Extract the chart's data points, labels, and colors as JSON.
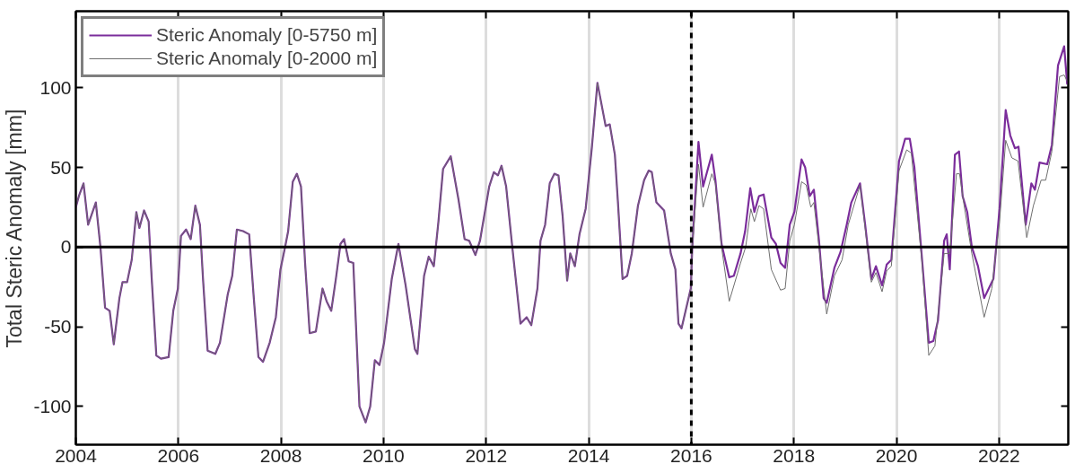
{
  "chart_data": {
    "type": "line",
    "ylabel": "Total Steric Anomaly [mm]",
    "xlim": [
      2004,
      2023.35
    ],
    "ylim": [
      -124,
      148
    ],
    "xticks": [
      2004,
      2006,
      2008,
      2010,
      2012,
      2014,
      2016,
      2018,
      2020,
      2022
    ],
    "yticks": [
      -100,
      -50,
      0,
      50,
      100
    ],
    "grid": "x",
    "legend": "top left",
    "marker": "none",
    "line_style": "solid",
    "ref_lines": [
      {
        "axis": "y",
        "value": 0,
        "color": "#000000",
        "line_style": "solid"
      },
      {
        "axis": "x",
        "value": 2016,
        "color": "#000000",
        "line_style": "dashed"
      }
    ],
    "series": [
      {
        "name": "Steric Anomaly [0-5750 m]",
        "color": "#7b2d9b",
        "x": [
          2004.0,
          2004.06,
          2004.15,
          2004.24,
          2004.39,
          2004.48,
          2004.57,
          2004.66,
          2004.74,
          2004.85,
          2004.91,
          2005.0,
          2005.09,
          2005.18,
          2005.24,
          2005.33,
          2005.42,
          2005.48,
          2005.57,
          2005.66,
          2005.81,
          2005.9,
          2005.99,
          2006.05,
          2006.15,
          2006.24,
          2006.33,
          2006.42,
          2006.48,
          2006.57,
          2006.72,
          2006.81,
          2006.96,
          2007.05,
          2007.14,
          2007.26,
          2007.38,
          2007.47,
          2007.56,
          2007.65,
          2007.78,
          2007.9,
          2007.99,
          2008.08,
          2008.14,
          2008.23,
          2008.31,
          2008.39,
          2008.47,
          2008.56,
          2008.68,
          2008.81,
          2008.89,
          2008.98,
          2009.07,
          2009.16,
          2009.23,
          2009.32,
          2009.41,
          2009.53,
          2009.65,
          2009.74,
          2009.83,
          2009.92,
          2010.01,
          2010.16,
          2010.29,
          2010.43,
          2010.61,
          2010.66,
          2010.79,
          2010.88,
          2010.98,
          2011.07,
          2011.16,
          2011.31,
          2011.46,
          2011.58,
          2011.67,
          2011.79,
          2011.88,
          2012.06,
          2012.15,
          2012.23,
          2012.3,
          2012.39,
          2012.51,
          2012.67,
          2012.79,
          2012.88,
          2013.0,
          2013.06,
          2013.15,
          2013.24,
          2013.33,
          2013.41,
          2013.49,
          2013.58,
          2013.64,
          2013.73,
          2013.82,
          2013.94,
          2014.06,
          2014.17,
          2014.33,
          2014.41,
          2014.51,
          2014.57,
          2014.66,
          2014.75,
          2014.84,
          2014.96,
          2015.08,
          2015.17,
          2015.23,
          2015.32,
          2015.47,
          2015.6,
          2015.69,
          2015.75,
          2015.81,
          2015.99,
          2016.02,
          2016.14,
          2016.23,
          2016.4,
          2016.47,
          2016.59,
          2016.74,
          2016.83,
          2016.96,
          2017.05,
          2017.15,
          2017.23,
          2017.32,
          2017.41,
          2017.56,
          2017.65,
          2017.74,
          2017.83,
          2017.92,
          2018.01,
          2018.15,
          2018.22,
          2018.31,
          2018.39,
          2018.49,
          2018.58,
          2018.64,
          2018.79,
          2018.91,
          2019.03,
          2019.12,
          2019.29,
          2019.39,
          2019.51,
          2019.6,
          2019.72,
          2019.81,
          2019.9,
          2020.05,
          2020.17,
          2020.26,
          2020.35,
          2020.5,
          2020.63,
          2020.72,
          2020.81,
          2020.93,
          2020.98,
          2021.04,
          2021.14,
          2021.22,
          2021.29,
          2021.38,
          2021.47,
          2021.59,
          2021.71,
          2021.8,
          2021.89,
          2022.01,
          2022.13,
          2022.22,
          2022.31,
          2022.38,
          2022.52,
          2022.63,
          2022.7,
          2022.79,
          2022.94,
          2023.03,
          2023.15,
          2023.27,
          2023.33
        ],
        "values": [
          25,
          32,
          40,
          14,
          28,
          0,
          -38,
          -40,
          -61,
          -32,
          -22,
          -22,
          -8,
          22,
          12,
          23,
          16,
          -20,
          -68,
          -70,
          -69,
          -40,
          -26,
          7,
          11,
          5,
          26,
          14,
          -20,
          -65,
          -67,
          -60,
          -30,
          -18,
          11,
          10,
          8,
          -32,
          -69,
          -72,
          -60,
          -44,
          -14,
          0,
          10,
          41,
          46,
          38,
          -10,
          -54,
          -53,
          -26,
          -34,
          -40,
          -20,
          2,
          5,
          -9,
          -10,
          -100,
          -110,
          -100,
          -71,
          -74,
          -60,
          -20,
          2,
          -24,
          -64,
          -67,
          -18,
          -6,
          -12,
          16,
          49,
          57,
          30,
          5,
          4,
          -5,
          4,
          38,
          47,
          45,
          51,
          38,
          0,
          -48,
          -44,
          -49,
          -26,
          4,
          14,
          40,
          46,
          45,
          20,
          -21,
          -4,
          -12,
          8,
          24,
          62,
          103,
          76,
          77,
          58,
          28,
          -20,
          -18,
          -4,
          26,
          42,
          48,
          47,
          28,
          23,
          -4,
          -14,
          -48,
          -51,
          -26,
          0,
          66,
          38,
          58,
          42,
          2,
          -19,
          -18,
          -4,
          10,
          37,
          22,
          32,
          33,
          6,
          2,
          -10,
          -13,
          14,
          22,
          55,
          50,
          32,
          36,
          4,
          -32,
          -35,
          -13,
          -3,
          14,
          28,
          40,
          14,
          -20,
          -12,
          -24,
          -11,
          -8,
          54,
          68,
          68,
          50,
          -8,
          -60,
          -59,
          -46,
          4,
          8,
          -14,
          58,
          60,
          32,
          22,
          0,
          -12,
          -32,
          -26,
          -20,
          24,
          86,
          70,
          62,
          63,
          14,
          40,
          36,
          53,
          52,
          64,
          114,
          126,
          102
        ]
      },
      {
        "name": "Steric Anomaly [0-2000 m]",
        "color": "#6e6e6e",
        "x": [
          2004.0,
          2004.06,
          2004.15,
          2004.24,
          2004.39,
          2004.48,
          2004.57,
          2004.66,
          2004.74,
          2004.85,
          2004.91,
          2005.0,
          2005.09,
          2005.18,
          2005.24,
          2005.33,
          2005.42,
          2005.48,
          2005.57,
          2005.66,
          2005.81,
          2005.9,
          2005.99,
          2006.05,
          2006.15,
          2006.24,
          2006.33,
          2006.42,
          2006.48,
          2006.57,
          2006.72,
          2006.81,
          2006.96,
          2007.05,
          2007.14,
          2007.26,
          2007.38,
          2007.47,
          2007.56,
          2007.65,
          2007.78,
          2007.9,
          2007.99,
          2008.08,
          2008.14,
          2008.23,
          2008.31,
          2008.39,
          2008.47,
          2008.56,
          2008.68,
          2008.81,
          2008.89,
          2008.98,
          2009.07,
          2009.16,
          2009.23,
          2009.32,
          2009.41,
          2009.53,
          2009.65,
          2009.74,
          2009.83,
          2009.92,
          2010.01,
          2010.16,
          2010.29,
          2010.43,
          2010.61,
          2010.66,
          2010.79,
          2010.88,
          2010.98,
          2011.07,
          2011.16,
          2011.31,
          2011.46,
          2011.58,
          2011.67,
          2011.79,
          2011.88,
          2012.06,
          2012.15,
          2012.23,
          2012.3,
          2012.39,
          2012.51,
          2012.67,
          2012.79,
          2012.88,
          2013.0,
          2013.06,
          2013.15,
          2013.24,
          2013.33,
          2013.41,
          2013.49,
          2013.58,
          2013.64,
          2013.73,
          2013.82,
          2013.94,
          2014.06,
          2014.17,
          2014.33,
          2014.41,
          2014.51,
          2014.57,
          2014.66,
          2014.75,
          2014.84,
          2014.96,
          2015.08,
          2015.17,
          2015.23,
          2015.32,
          2015.47,
          2015.6,
          2015.69,
          2015.75,
          2015.81,
          2015.99,
          2016.02,
          2016.14,
          2016.23,
          2016.4,
          2016.47,
          2016.59,
          2016.74,
          2016.96,
          2017.06,
          2017.16,
          2017.23,
          2017.32,
          2017.41,
          2017.56,
          2017.74,
          2017.83,
          2017.92,
          2018.01,
          2018.15,
          2018.24,
          2018.33,
          2018.39,
          2018.49,
          2018.64,
          2018.79,
          2018.94,
          2019.06,
          2019.29,
          2019.39,
          2019.51,
          2019.6,
          2019.72,
          2019.81,
          2019.9,
          2020.05,
          2020.2,
          2020.29,
          2020.5,
          2020.63,
          2020.75,
          2020.93,
          2021.04,
          2021.17,
          2021.23,
          2021.32,
          2021.47,
          2021.71,
          2021.86,
          2022.01,
          2022.13,
          2022.25,
          2022.37,
          2022.54,
          2022.67,
          2022.82,
          2022.91,
          2023.03,
          2023.18,
          2023.27,
          2023.33
        ],
        "values": [
          25,
          32,
          40,
          14,
          28,
          0,
          -38,
          -40,
          -61,
          -32,
          -22,
          -22,
          -8,
          22,
          12,
          23,
          16,
          -20,
          -68,
          -70,
          -69,
          -40,
          -26,
          7,
          11,
          5,
          26,
          14,
          -20,
          -65,
          -67,
          -60,
          -30,
          -18,
          11,
          10,
          8,
          -32,
          -69,
          -72,
          -60,
          -44,
          -14,
          0,
          10,
          41,
          46,
          38,
          -10,
          -54,
          -53,
          -26,
          -34,
          -40,
          -20,
          2,
          5,
          -9,
          -10,
          -100,
          -110,
          -100,
          -71,
          -74,
          -60,
          -20,
          2,
          -24,
          -64,
          -67,
          -18,
          -6,
          -12,
          16,
          49,
          57,
          30,
          5,
          4,
          -5,
          4,
          38,
          47,
          45,
          51,
          38,
          0,
          -48,
          -44,
          -49,
          -26,
          4,
          14,
          40,
          46,
          45,
          20,
          -21,
          -4,
          -12,
          8,
          24,
          62,
          103,
          76,
          77,
          58,
          28,
          -20,
          -18,
          -4,
          26,
          42,
          48,
          47,
          28,
          23,
          -4,
          -14,
          -48,
          -51,
          -26,
          0,
          52,
          25,
          46,
          40,
          0,
          -34,
          -10,
          0,
          24,
          16,
          26,
          24,
          -14,
          -27,
          -26,
          4,
          14,
          41,
          39,
          25,
          28,
          0,
          -42,
          -18,
          -8,
          14,
          39,
          12,
          -22,
          -16,
          -28,
          -15,
          -12,
          48,
          61,
          59,
          -10,
          -68,
          -62,
          -4,
          -4,
          46,
          46,
          26,
          -4,
          -44,
          -26,
          16,
          67,
          56,
          54,
          6,
          26,
          42,
          42,
          60,
          107,
          108,
          104
        ]
      }
    ]
  }
}
